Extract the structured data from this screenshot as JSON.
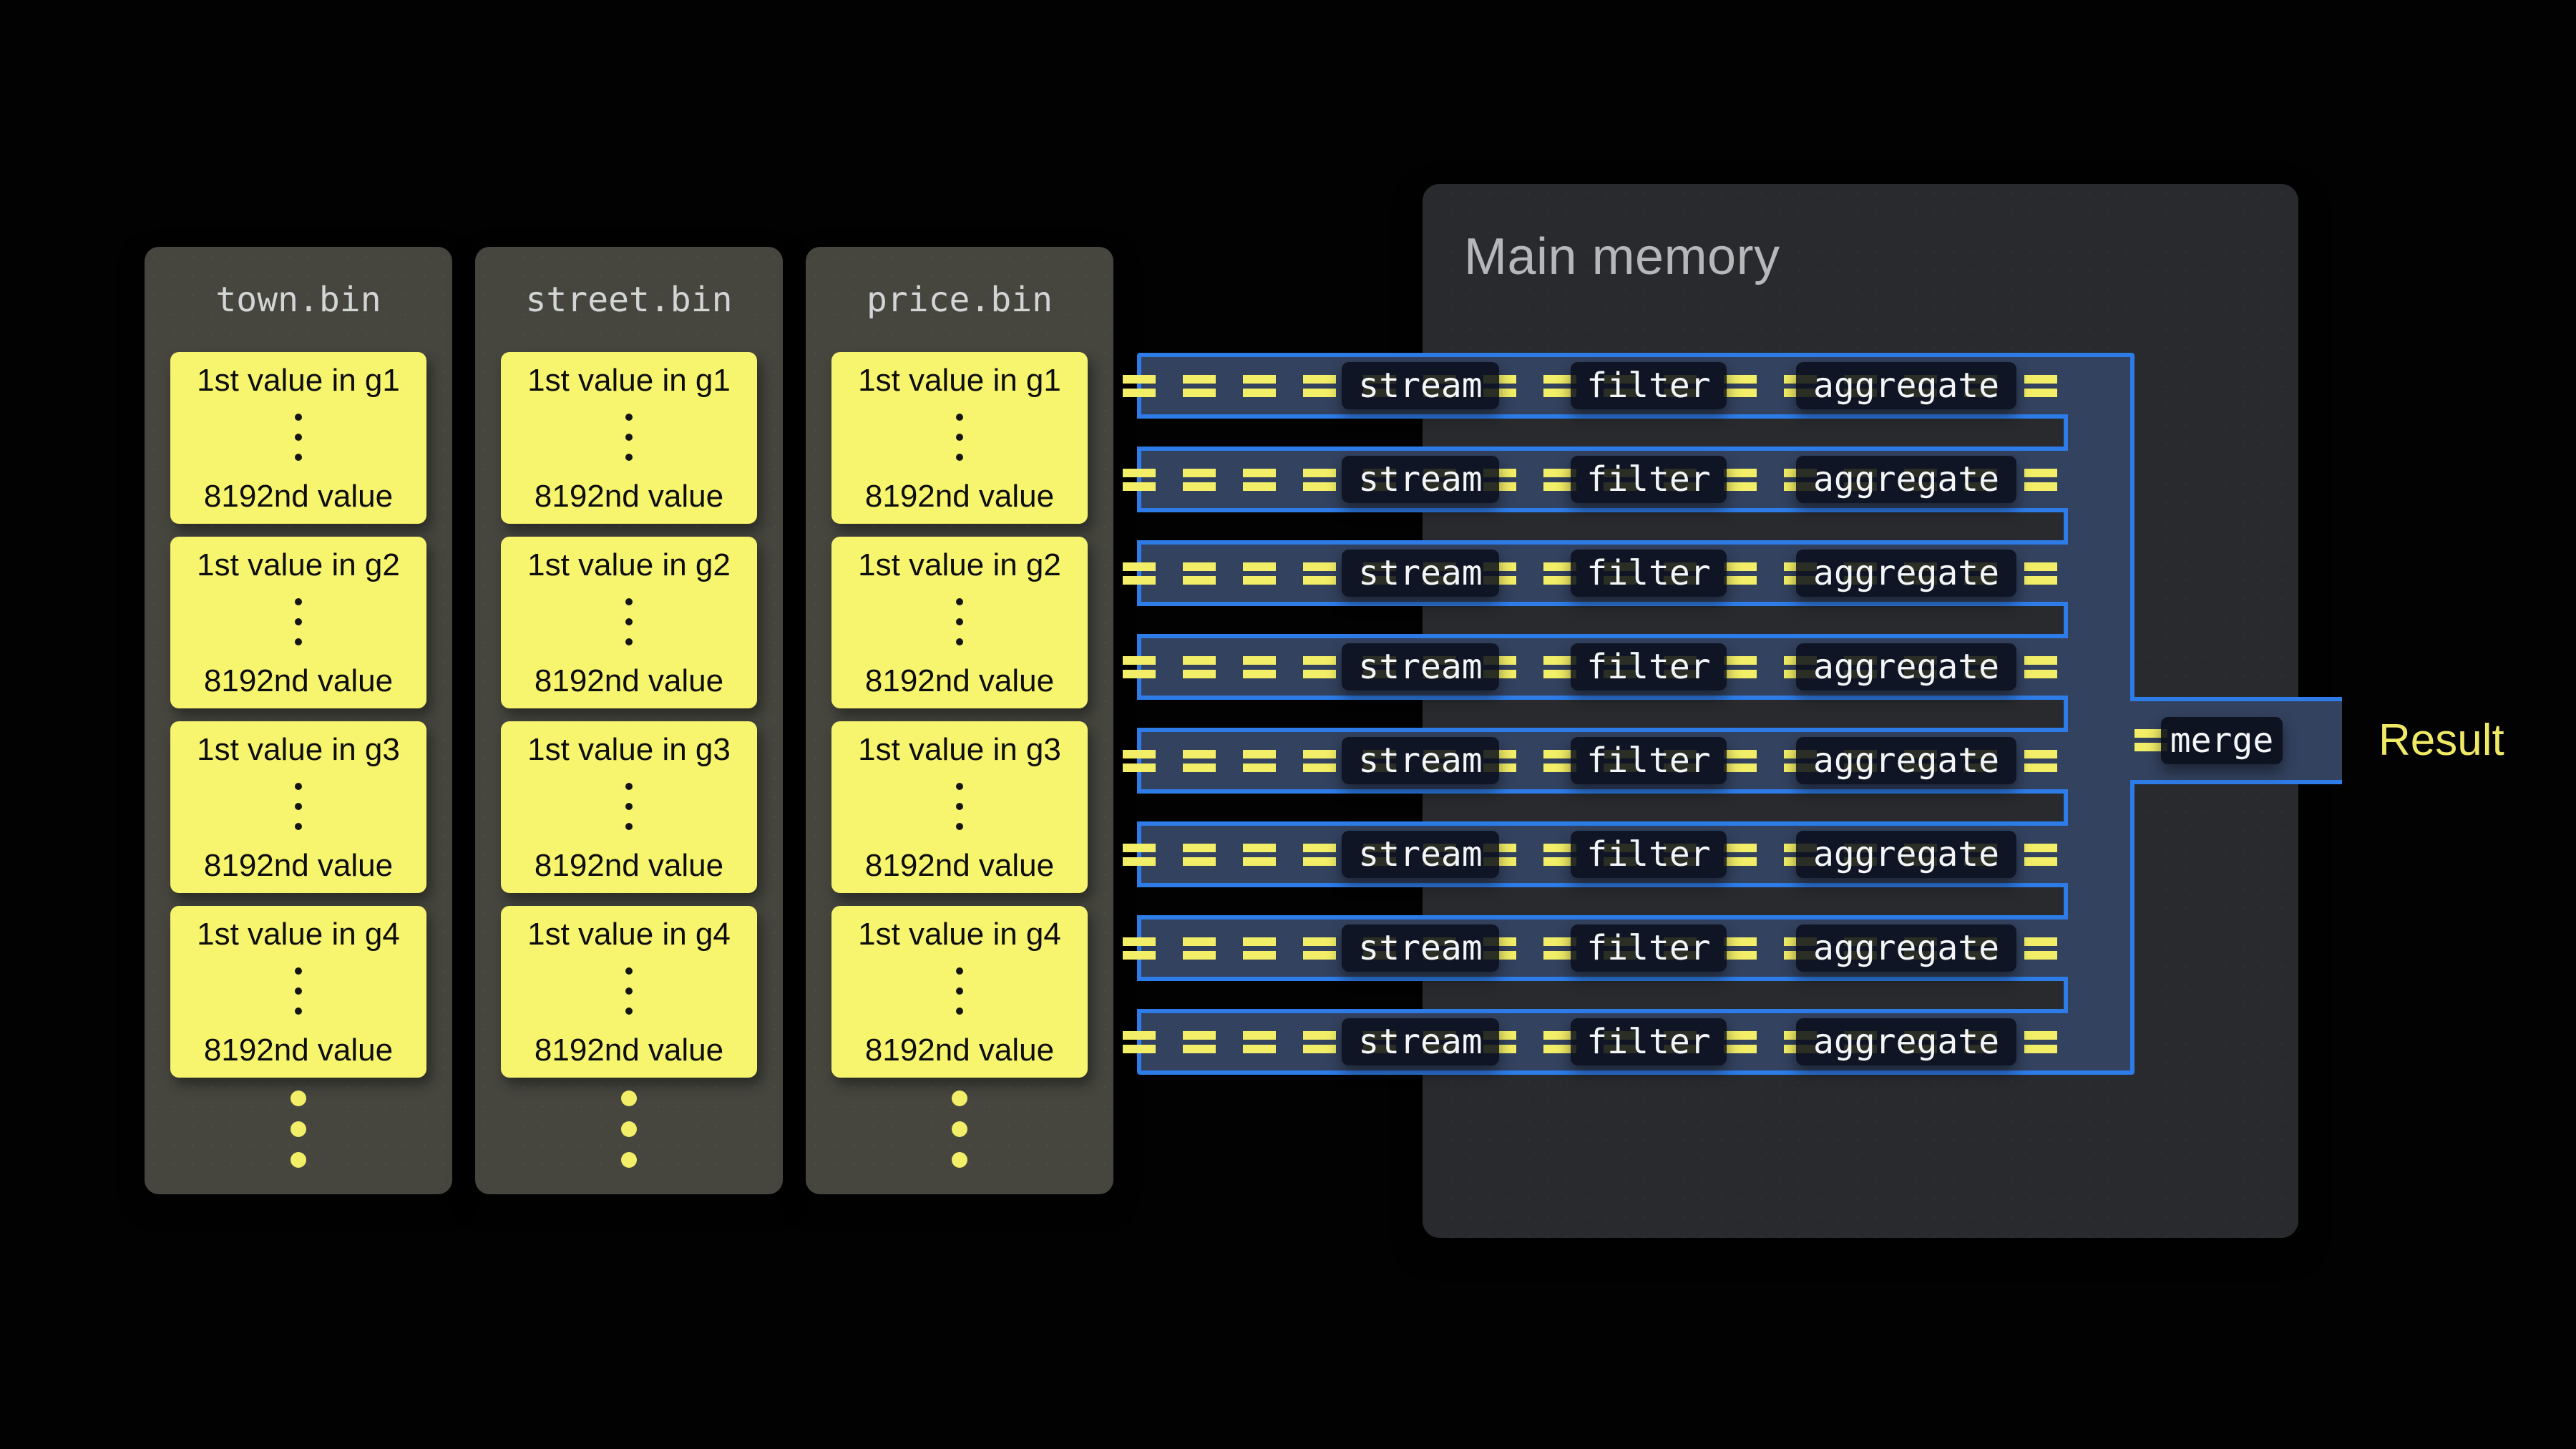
{
  "memory": {
    "title": "Main memory"
  },
  "files": [
    {
      "name": "town.bin",
      "groups": [
        {
          "first": "1st value in g1",
          "last": "8192nd value"
        },
        {
          "first": "1st value in g2",
          "last": "8192nd value"
        },
        {
          "first": "1st value in g3",
          "last": "8192nd value"
        },
        {
          "first": "1st value in g4",
          "last": "8192nd value"
        }
      ]
    },
    {
      "name": "street.bin",
      "groups": [
        {
          "first": "1st value in g1",
          "last": "8192nd value"
        },
        {
          "first": "1st value in g2",
          "last": "8192nd value"
        },
        {
          "first": "1st value in g3",
          "last": "8192nd value"
        },
        {
          "first": "1st value in g4",
          "last": "8192nd value"
        }
      ]
    },
    {
      "name": "price.bin",
      "groups": [
        {
          "first": "1st value in g1",
          "last": "8192nd value"
        },
        {
          "first": "1st value in g2",
          "last": "8192nd value"
        },
        {
          "first": "1st value in g3",
          "last": "8192nd value"
        },
        {
          "first": "1st value in g4",
          "last": "8192nd value"
        }
      ]
    }
  ],
  "pipeline": {
    "stages": {
      "stream": "stream",
      "filter": "filter",
      "aggregate": "aggregate"
    },
    "rows": [
      {},
      {},
      {},
      {},
      {},
      {},
      {},
      {}
    ],
    "slots": [
      {},
      {},
      {},
      {},
      {},
      {},
      {}
    ],
    "merge_label": "merge",
    "result_label": "Result"
  },
  "colors": {
    "accent_blue": "#2d7ce8",
    "pipe_fill": "#33425f",
    "highlight_yellow": "#f7f46e",
    "dash_yellow": "#f2ee67",
    "result_yellow": "#efe966",
    "memory_bg": "#282a2e",
    "file_panel_bg": "#46463f"
  }
}
